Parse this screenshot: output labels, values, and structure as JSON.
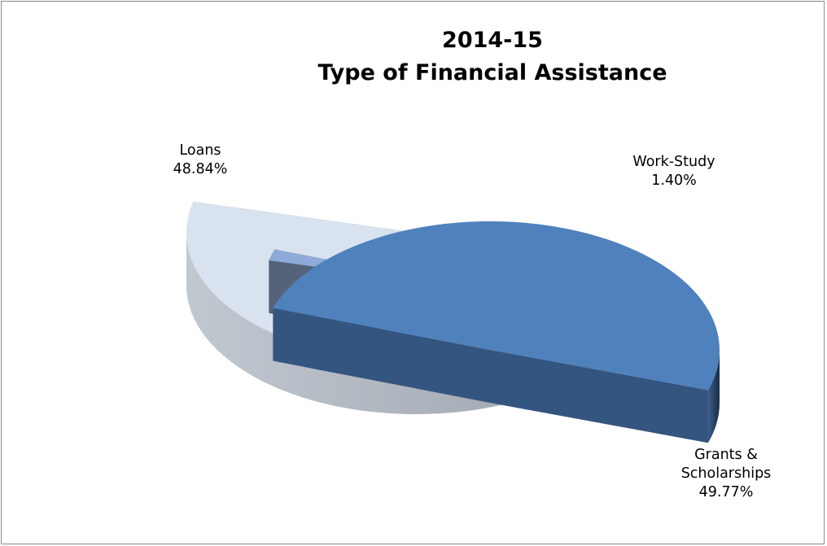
{
  "chart_data": {
    "type": "pie",
    "title": [
      "2014-15",
      "Type of Financial Assistance"
    ],
    "categories": [
      "Grants & Scholarships",
      "Loans",
      "Work-Study"
    ],
    "values": [
      49.77,
      48.84,
      1.4
    ],
    "value_labels": [
      "49.77%",
      "48.84%",
      "1.40%"
    ],
    "label_lines": [
      [
        "Grants &",
        "Scholarships",
        "49.77%"
      ],
      [
        "Loans",
        "48.84%"
      ],
      [
        "Work-Study",
        "1.40%"
      ]
    ],
    "colors": [
      "#4f81bd",
      "#d9e2ef",
      "#8eaad8"
    ],
    "style": "3d-exploded",
    "legend": "none",
    "grid": false
  }
}
